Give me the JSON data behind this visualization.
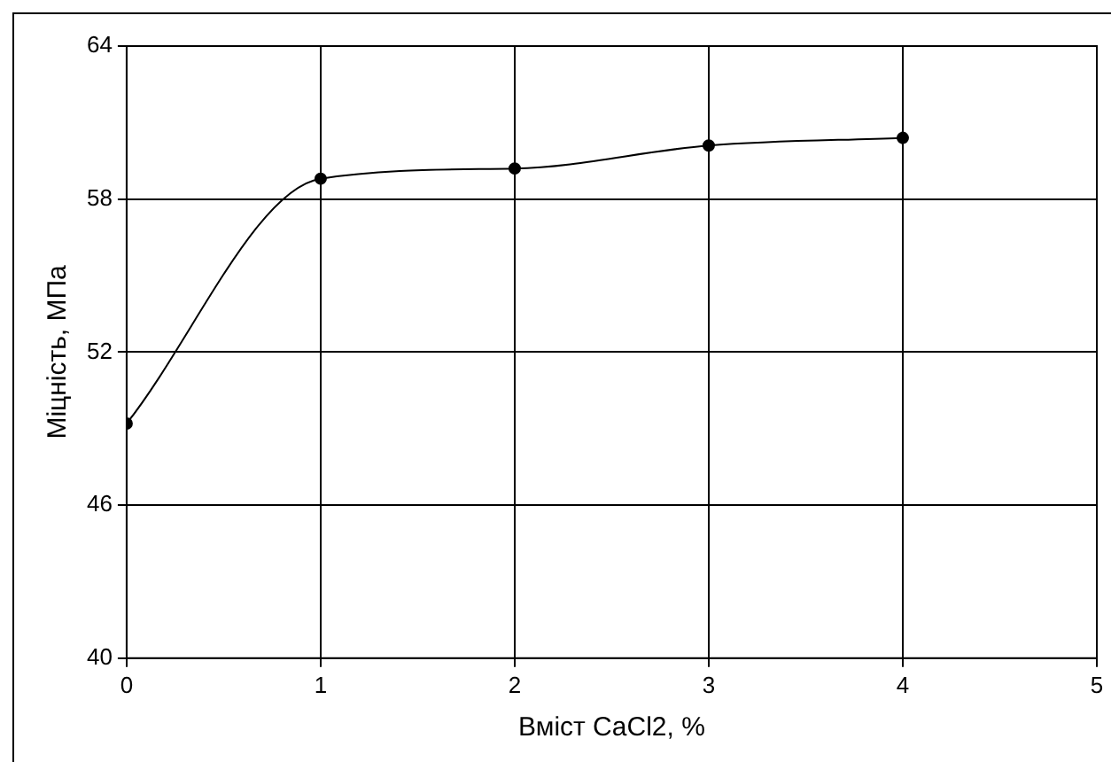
{
  "chart_data": {
    "type": "line",
    "xlabel": "Вміст CaCl2, %",
    "ylabel": "Міцність, МПа",
    "x": [
      0,
      1,
      2,
      3,
      4
    ],
    "series": [
      {
        "color": "#000000",
        "values": [
          49.2,
          58.8,
          59.2,
          60.1,
          60.4
        ]
      }
    ],
    "xlim": [
      0,
      5
    ],
    "xticks": [
      0,
      1,
      2,
      3,
      4,
      5
    ],
    "ylim": [
      40,
      64
    ],
    "yticks": [
      40,
      46,
      52,
      58,
      64
    ],
    "grid": true,
    "legend": false,
    "marker": "circle",
    "line_style": "solid"
  }
}
